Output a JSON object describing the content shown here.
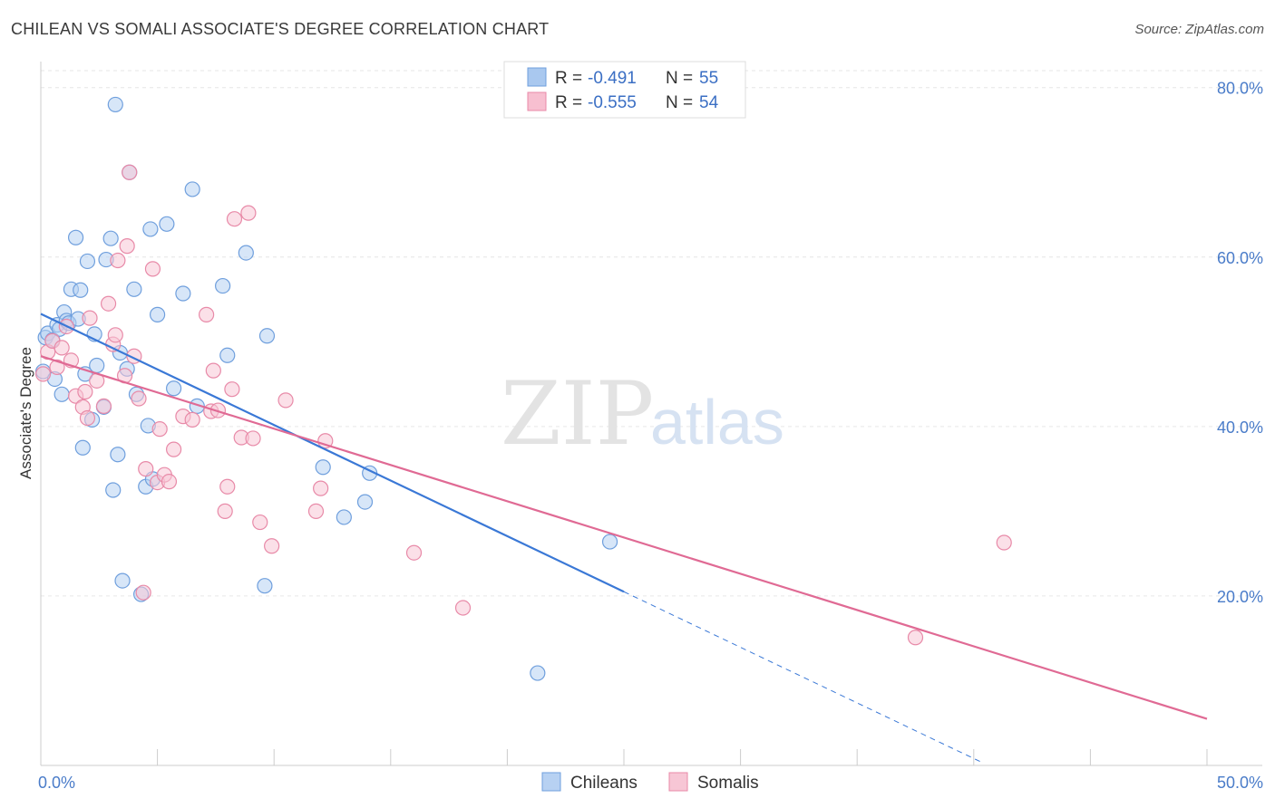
{
  "title": "CHILEAN VS SOMALI ASSOCIATE'S DEGREE CORRELATION CHART",
  "source": "Source: ZipAtlas.com",
  "watermark": {
    "zip": "ZIP",
    "atlas": "atlas"
  },
  "legend": {
    "rows": [
      {
        "r_label": "R =",
        "r_value": "-0.491",
        "n_label": "N =",
        "n_value": "55",
        "color": "#a9c8ef",
        "stroke": "#6f9fdd"
      },
      {
        "r_label": "R =",
        "r_value": "-0.555",
        "n_label": "N =",
        "n_value": "54",
        "color": "#f7bfd0",
        "stroke": "#e88aa8"
      }
    ]
  },
  "chart_data": {
    "type": "scatter",
    "title": "CHILEAN VS SOMALI ASSOCIATE'S DEGREE CORRELATION CHART",
    "xlabel": "",
    "ylabel": "Associate's Degree",
    "xlim": [
      0,
      50
    ],
    "ylim": [
      0,
      82
    ],
    "x_tick_labels": [
      {
        "value": 0,
        "label": "0.0%"
      },
      {
        "value": 50,
        "label": "50.0%"
      }
    ],
    "y_tick_labels": [
      {
        "value": 20,
        "label": "20.0%"
      },
      {
        "value": 40,
        "label": "40.0%"
      },
      {
        "value": 60,
        "label": "60.0%"
      },
      {
        "value": 80,
        "label": "80.0%"
      }
    ],
    "x_minor_ticks": [
      0,
      5,
      10,
      15,
      20,
      25,
      30,
      35,
      40,
      45,
      50
    ],
    "grid": true,
    "legend_position": "top-center",
    "series": [
      {
        "name": "Chileans",
        "color": "#6f9fdd",
        "fill": "#b7d1f2",
        "trend": {
          "x0": 0,
          "y0": 53.3,
          "x1": 25,
          "y1": 20.5,
          "dash_to_x": 40.3
        },
        "points": [
          [
            0.1,
            46.5
          ],
          [
            0.2,
            50.5
          ],
          [
            0.3,
            51.0
          ],
          [
            0.5,
            50.2
          ],
          [
            0.7,
            52.0
          ],
          [
            0.8,
            51.5
          ],
          [
            0.9,
            43.8
          ],
          [
            1.0,
            53.5
          ],
          [
            1.1,
            52.5
          ],
          [
            1.2,
            52.2
          ],
          [
            1.3,
            56.2
          ],
          [
            1.5,
            62.3
          ],
          [
            1.6,
            52.7
          ],
          [
            1.7,
            56.1
          ],
          [
            1.8,
            37.5
          ],
          [
            1.9,
            46.2
          ],
          [
            2.0,
            59.5
          ],
          [
            2.2,
            40.8
          ],
          [
            2.3,
            50.9
          ],
          [
            2.4,
            47.2
          ],
          [
            2.7,
            42.3
          ],
          [
            2.8,
            59.7
          ],
          [
            3.0,
            62.2
          ],
          [
            3.1,
            32.5
          ],
          [
            3.2,
            78.0
          ],
          [
            3.3,
            36.7
          ],
          [
            3.4,
            48.7
          ],
          [
            3.5,
            21.8
          ],
          [
            3.7,
            46.8
          ],
          [
            3.8,
            70.0
          ],
          [
            4.0,
            56.2
          ],
          [
            4.1,
            43.8
          ],
          [
            4.3,
            20.2
          ],
          [
            4.5,
            32.9
          ],
          [
            4.6,
            40.1
          ],
          [
            4.7,
            63.3
          ],
          [
            4.8,
            33.8
          ],
          [
            5.0,
            53.2
          ],
          [
            5.4,
            63.9
          ],
          [
            5.7,
            44.5
          ],
          [
            6.1,
            55.7
          ],
          [
            6.5,
            68.0
          ],
          [
            6.7,
            42.4
          ],
          [
            7.8,
            56.6
          ],
          [
            8.0,
            48.4
          ],
          [
            8.8,
            60.5
          ],
          [
            9.6,
            21.2
          ],
          [
            9.7,
            50.7
          ],
          [
            12.1,
            35.2
          ],
          [
            13.0,
            29.3
          ],
          [
            13.9,
            31.1
          ],
          [
            14.1,
            34.5
          ],
          [
            21.3,
            10.9
          ],
          [
            24.4,
            26.4
          ],
          [
            0.6,
            45.6
          ]
        ]
      },
      {
        "name": "Somalis",
        "color": "#e88aa8",
        "fill": "#f7c6d5",
        "trend": {
          "x0": 0,
          "y0": 48.3,
          "x1": 50,
          "y1": 5.5
        },
        "points": [
          [
            0.1,
            46.2
          ],
          [
            0.3,
            48.8
          ],
          [
            0.5,
            50.1
          ],
          [
            0.7,
            47.0
          ],
          [
            0.9,
            49.3
          ],
          [
            1.1,
            51.8
          ],
          [
            1.3,
            47.8
          ],
          [
            1.5,
            43.6
          ],
          [
            1.8,
            42.3
          ],
          [
            1.9,
            44.1
          ],
          [
            2.1,
            52.8
          ],
          [
            2.4,
            45.4
          ],
          [
            2.7,
            42.4
          ],
          [
            2.9,
            54.5
          ],
          [
            3.1,
            49.7
          ],
          [
            3.2,
            50.8
          ],
          [
            3.3,
            59.6
          ],
          [
            3.6,
            46.0
          ],
          [
            3.7,
            61.3
          ],
          [
            3.8,
            70.0
          ],
          [
            4.0,
            48.3
          ],
          [
            4.2,
            43.3
          ],
          [
            4.5,
            35.0
          ],
          [
            4.8,
            58.6
          ],
          [
            5.0,
            33.4
          ],
          [
            5.1,
            39.7
          ],
          [
            5.3,
            34.3
          ],
          [
            5.5,
            33.5
          ],
          [
            5.7,
            37.3
          ],
          [
            6.1,
            41.2
          ],
          [
            6.5,
            40.8
          ],
          [
            7.1,
            53.2
          ],
          [
            7.3,
            41.8
          ],
          [
            7.4,
            46.6
          ],
          [
            7.6,
            41.9
          ],
          [
            7.9,
            30.0
          ],
          [
            8.0,
            32.9
          ],
          [
            8.2,
            44.4
          ],
          [
            8.3,
            64.5
          ],
          [
            8.6,
            38.7
          ],
          [
            8.9,
            65.2
          ],
          [
            9.1,
            38.6
          ],
          [
            9.4,
            28.7
          ],
          [
            9.9,
            25.9
          ],
          [
            10.5,
            43.1
          ],
          [
            12.0,
            32.7
          ],
          [
            12.2,
            38.3
          ],
          [
            11.8,
            30.0
          ],
          [
            16.0,
            25.1
          ],
          [
            18.1,
            18.6
          ],
          [
            41.3,
            26.3
          ],
          [
            37.5,
            15.1
          ],
          [
            2.0,
            41.0
          ],
          [
            4.4,
            20.4
          ]
        ]
      }
    ]
  },
  "bottom_legend": [
    {
      "label": "Chileans",
      "fill": "#b7d1f2",
      "stroke": "#6f9fdd"
    },
    {
      "label": "Somalis",
      "fill": "#f7c6d5",
      "stroke": "#e88aa8"
    }
  ]
}
